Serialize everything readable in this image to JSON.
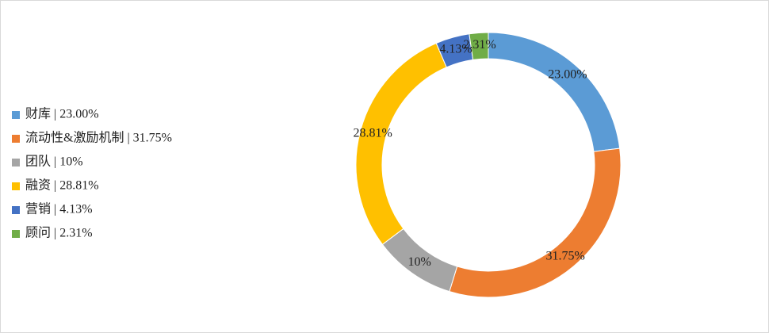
{
  "chart_data": {
    "type": "donut",
    "categories": [
      "财库 | 23.00%",
      "流动性&激励机制 | 31.75%",
      "团队 | 10%",
      "融资 | 28.81%",
      "营销 | 4.13%",
      "顾问 | 2.31%"
    ],
    "values": [
      23.0,
      31.75,
      10,
      28.81,
      4.13,
      2.31
    ],
    "value_labels": [
      "23.00%",
      "31.75%",
      "10%",
      "28.81%",
      "4.13%",
      "2.31%"
    ],
    "colors": [
      "#5b9bd5",
      "#ed7d31",
      "#a5a5a5",
      "#ffc000",
      "#4472c4",
      "#70ad47"
    ],
    "legend": "left"
  }
}
